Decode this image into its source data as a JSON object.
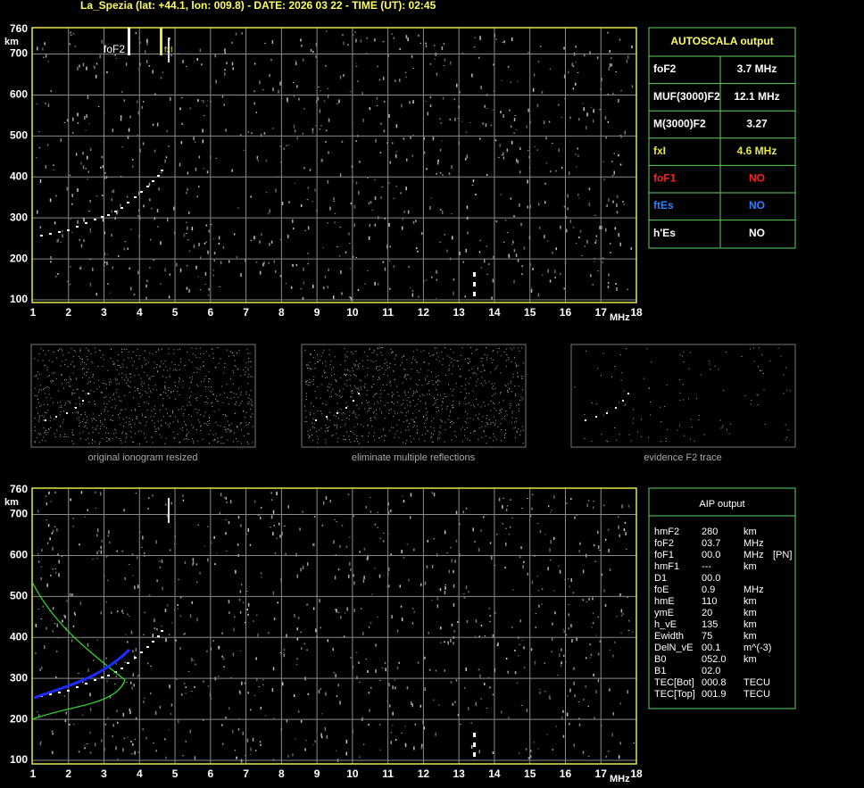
{
  "header": "La_Spezia (lat: +44.1, lon: 009.8) - DATE: 2026 03 22 - TIME (UT): 02:45",
  "ionograms": [
    {
      "y_unit": "km",
      "x_unit": "MHz",
      "yticks": [
        760,
        700,
        600,
        500,
        400,
        300,
        200,
        100
      ],
      "xticks": [
        1,
        2,
        3,
        4,
        5,
        6,
        7,
        8,
        9,
        10,
        11,
        12,
        13,
        14,
        15,
        16,
        17,
        18
      ],
      "labels": [
        "foF2",
        "fxI"
      ]
    },
    {
      "y_unit": "km",
      "x_unit": "MHz",
      "yticks": [
        760,
        700,
        600,
        500,
        400,
        300,
        200,
        100
      ],
      "xticks": [
        1,
        2,
        3,
        4,
        5,
        6,
        7,
        8,
        9,
        10,
        11,
        12,
        13,
        14,
        15,
        16,
        17,
        18
      ]
    }
  ],
  "autoscala": {
    "title": "AUTOSCALA output",
    "rows": [
      {
        "label": "foF2",
        "value": "3.7 MHz",
        "color": "#ffffff"
      },
      {
        "label": "MUF(3000)F2",
        "value": "12.1 MHz",
        "color": "#ffffff"
      },
      {
        "label": "M(3000)F2",
        "value": "3.27",
        "color": "#ffffff"
      },
      {
        "label": "fxI",
        "value": "4.6 MHz",
        "color": "#e6e64c"
      },
      {
        "label": "foF1",
        "value": "NO",
        "color": "#ff2020"
      },
      {
        "label": "ftEs",
        "value": "NO",
        "color": "#2f7fff"
      },
      {
        "label": "h'Es",
        "value": "NO",
        "color": "#ffffff"
      }
    ]
  },
  "thumbnails": [
    "original ionogram resized",
    "eliminate multiple reflections",
    "evidence F2 trace"
  ],
  "aip": {
    "title": "AIP output",
    "rows": [
      [
        "hmF2",
        "280",
        "km"
      ],
      [
        "foF2",
        "03.7",
        "MHz"
      ],
      [
        "foF1",
        "00.0",
        "MHz",
        "[PN]"
      ],
      [
        "hmF1",
        "---",
        "km"
      ],
      [
        "D1",
        "00.0"
      ],
      [
        "foE",
        "0.9",
        "MHz"
      ],
      [
        "hmE",
        "110",
        "km"
      ],
      [
        "ymE",
        "20",
        "km"
      ],
      [
        "h_vE",
        "135",
        "km"
      ],
      [
        "Ewidth",
        "75",
        "km"
      ],
      [
        "DelN_vE",
        "00.1",
        "m^(-3)"
      ],
      [
        "B0",
        "052.0",
        "km"
      ],
      [
        "B1",
        "02.0"
      ],
      [
        "TEC[Bot]",
        "000.8",
        "TECU"
      ],
      [
        "TEC[Top]",
        "001.9",
        "TECU"
      ]
    ]
  }
}
